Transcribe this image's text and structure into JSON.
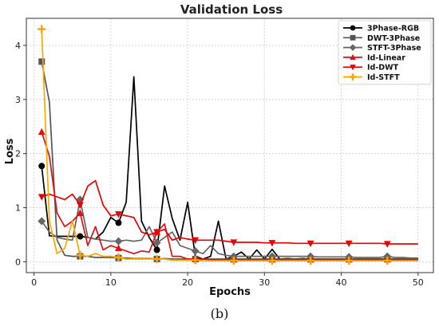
{
  "caption": "(b)",
  "chart_data": {
    "type": "line",
    "title": "Validation Loss",
    "xlabel": "Epochs",
    "ylabel": "Loss",
    "xlim": [
      -1,
      52
    ],
    "ylim": [
      -0.2,
      4.5
    ],
    "xticks": [
      0,
      10,
      20,
      30,
      40,
      50
    ],
    "yticks": [
      0,
      1,
      2,
      3,
      4
    ],
    "grid": true,
    "legend_position": "top-right",
    "series": [
      {
        "name": "3Phase-RGB",
        "color": "#000000",
        "marker": "circle",
        "x": [
          1,
          2,
          3,
          4,
          5,
          6,
          7,
          8,
          9,
          10,
          11,
          12,
          13,
          14,
          15,
          16,
          17,
          18,
          19,
          20,
          21,
          22,
          23,
          24,
          25,
          26,
          27,
          28,
          29,
          30,
          31,
          32,
          33,
          34,
          35,
          36,
          37,
          38,
          39,
          40,
          41,
          42,
          43,
          44,
          45,
          46,
          47,
          48,
          49,
          50
        ],
        "values": [
          1.77,
          0.48,
          0.47,
          0.47,
          0.47,
          0.47,
          0.45,
          0.42,
          0.55,
          0.82,
          0.72,
          1.1,
          3.42,
          0.75,
          0.45,
          0.22,
          1.4,
          0.8,
          0.4,
          1.1,
          0.1,
          0.05,
          0.1,
          0.75,
          0.05,
          0.1,
          0.18,
          0.05,
          0.22,
          0.05,
          0.23,
          0.05,
          0.06,
          0.05,
          0.06,
          0.05,
          0.05,
          0.05,
          0.05,
          0.05,
          0.05,
          0.05,
          0.05,
          0.05,
          0.05,
          0.05,
          0.05,
          0.05,
          0.05,
          0.05
        ],
        "marker_x": [
          1,
          6,
          11,
          16
        ]
      },
      {
        "name": "DWT-3Phase",
        "color": "#555555",
        "marker": "square",
        "x": [
          1,
          2,
          3,
          4,
          5,
          6,
          7,
          8,
          9,
          10,
          11,
          12,
          13,
          14,
          15,
          16,
          17,
          18,
          19,
          20,
          21,
          22,
          23,
          24,
          25,
          26,
          27,
          28,
          29,
          30,
          31,
          32,
          33,
          34,
          35,
          36,
          37,
          38,
          39,
          40,
          41,
          42,
          43,
          44,
          45,
          46,
          47,
          48,
          49,
          50
        ],
        "values": [
          3.7,
          2.95,
          0.4,
          0.12,
          0.1,
          0.1,
          0.1,
          0.08,
          0.08,
          0.08,
          0.07,
          0.07,
          0.06,
          0.06,
          0.06,
          0.05,
          0.06,
          0.05,
          0.05,
          0.05,
          0.05,
          0.05,
          0.05,
          0.05,
          0.05,
          0.05,
          0.05,
          0.05,
          0.05,
          0.05,
          0.05,
          0.05,
          0.05,
          0.05,
          0.05,
          0.05,
          0.05,
          0.05,
          0.05,
          0.05,
          0.05,
          0.05,
          0.05,
          0.05,
          0.05,
          0.05,
          0.05,
          0.05,
          0.05,
          0.05
        ],
        "marker_x": [
          1,
          6,
          11,
          16,
          21,
          26,
          31,
          36,
          41,
          46
        ]
      },
      {
        "name": "STFT-3Phase",
        "color": "#666666",
        "marker": "diamond",
        "x": [
          1,
          2,
          3,
          4,
          5,
          6,
          7,
          8,
          9,
          10,
          11,
          12,
          13,
          14,
          15,
          16,
          17,
          18,
          19,
          20,
          21,
          22,
          23,
          24,
          25,
          26,
          27,
          28,
          29,
          30,
          31,
          32,
          33,
          34,
          35,
          36,
          37,
          38,
          39,
          40,
          41,
          42,
          43,
          44,
          45,
          46,
          47,
          48,
          49,
          50
        ],
        "values": [
          0.75,
          0.55,
          0.45,
          0.42,
          0.4,
          1.15,
          0.45,
          0.42,
          0.4,
          0.38,
          0.38,
          0.4,
          0.38,
          0.4,
          0.65,
          0.35,
          0.45,
          0.55,
          0.3,
          0.25,
          0.2,
          0.15,
          0.3,
          0.15,
          0.12,
          0.1,
          0.1,
          0.1,
          0.1,
          0.1,
          0.1,
          0.1,
          0.1,
          0.1,
          0.1,
          0.1,
          0.09,
          0.09,
          0.09,
          0.09,
          0.09,
          0.08,
          0.08,
          0.08,
          0.08,
          0.1,
          0.08,
          0.08,
          0.07,
          0.07
        ],
        "marker_x": [
          1,
          6,
          11,
          16,
          21,
          26,
          31,
          36,
          41,
          46
        ]
      },
      {
        "name": "Id-Linear",
        "color": "#dd1111",
        "marker": "triangle-up",
        "x": [
          1,
          2,
          3,
          4,
          5,
          6,
          7,
          8,
          9,
          10,
          11,
          12,
          13,
          14,
          15,
          16,
          17,
          18,
          19,
          20,
          21,
          22,
          23,
          24,
          25,
          26,
          27,
          28,
          29,
          30,
          31,
          32,
          33,
          34,
          35,
          36,
          37,
          38,
          39,
          40,
          41,
          42,
          43,
          44,
          45,
          46,
          47,
          48,
          49,
          50
        ],
        "values": [
          2.4,
          1.95,
          0.9,
          0.65,
          0.75,
          0.9,
          0.3,
          0.65,
          0.22,
          0.3,
          0.25,
          0.2,
          0.15,
          0.2,
          0.18,
          0.55,
          0.7,
          0.1,
          0.1,
          0.05,
          0.05,
          0.05,
          0.04,
          0.04,
          0.04,
          0.04,
          0.04,
          0.04,
          0.04,
          0.04,
          0.04,
          0.04,
          0.04,
          0.04,
          0.04,
          0.04,
          0.04,
          0.04,
          0.04,
          0.04,
          0.04,
          0.04,
          0.04,
          0.04,
          0.04,
          0.04,
          0.04,
          0.04,
          0.04,
          0.04
        ],
        "marker_x": [
          1,
          6,
          11,
          16,
          21,
          26,
          31,
          36,
          41,
          46
        ]
      },
      {
        "name": "Id-DWT",
        "color": "#ee0000",
        "marker": "triangle-down",
        "x": [
          1,
          2,
          3,
          4,
          5,
          6,
          7,
          8,
          9,
          10,
          11,
          12,
          13,
          14,
          15,
          16,
          17,
          18,
          19,
          20,
          21,
          22,
          23,
          24,
          25,
          26,
          27,
          28,
          29,
          30,
          31,
          32,
          33,
          34,
          35,
          36,
          37,
          38,
          39,
          40,
          41,
          42,
          43,
          44,
          45,
          46,
          47,
          48,
          49,
          50
        ],
        "values": [
          1.2,
          1.25,
          1.2,
          1.15,
          1.25,
          1.05,
          1.4,
          1.5,
          1.05,
          0.85,
          0.88,
          0.85,
          0.82,
          0.55,
          0.5,
          0.55,
          0.6,
          0.4,
          0.45,
          0.42,
          0.4,
          0.4,
          0.4,
          0.4,
          0.38,
          0.36,
          0.36,
          0.36,
          0.36,
          0.35,
          0.35,
          0.35,
          0.35,
          0.34,
          0.34,
          0.34,
          0.34,
          0.34,
          0.34,
          0.34,
          0.34,
          0.34,
          0.34,
          0.34,
          0.34,
          0.33,
          0.33,
          0.33,
          0.33,
          0.33
        ],
        "marker_x": [
          1,
          6,
          11,
          16,
          21,
          26,
          31,
          36,
          41,
          46
        ]
      },
      {
        "name": "Id-STFT",
        "color": "#ffa500",
        "marker": "plus",
        "x": [
          1,
          2,
          3,
          4,
          5,
          6,
          7,
          8,
          9,
          10,
          11,
          12,
          13,
          14,
          15,
          16,
          17,
          18,
          19,
          20,
          21,
          22,
          23,
          24,
          25,
          26,
          27,
          28,
          29,
          30,
          31,
          32,
          33,
          34,
          35,
          36,
          37,
          38,
          39,
          40,
          41,
          42,
          43,
          44,
          45,
          46,
          47,
          48,
          49,
          50
        ],
        "values": [
          4.3,
          0.75,
          0.15,
          0.25,
          0.75,
          0.12,
          0.1,
          0.15,
          0.1,
          0.1,
          0.08,
          0.05,
          0.05,
          0.05,
          0.05,
          0.05,
          0.05,
          0.03,
          0.03,
          0.03,
          0.03,
          0.02,
          0.02,
          0.02,
          0.02,
          0.02,
          0.02,
          0.02,
          0.02,
          0.02,
          0.02,
          0.02,
          0.02,
          0.02,
          0.02,
          0.02,
          0.02,
          0.02,
          0.02,
          0.02,
          0.02,
          0.02,
          0.02,
          0.02,
          0.02,
          0.02,
          0.02,
          0.02,
          0.02,
          0.02
        ],
        "marker_x": [
          1,
          6,
          11,
          16,
          21,
          26,
          31,
          36,
          41,
          46
        ]
      }
    ]
  }
}
